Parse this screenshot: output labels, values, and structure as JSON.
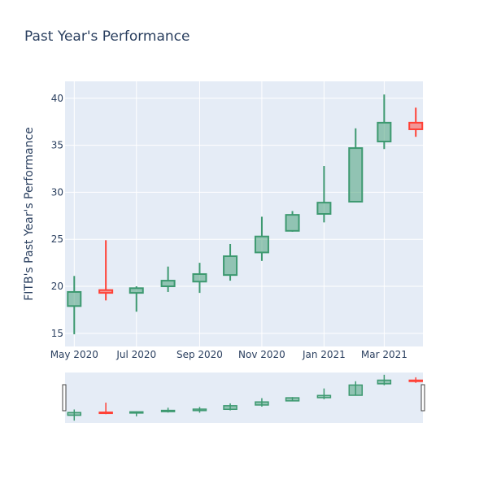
{
  "chart_data": {
    "type": "candlestick",
    "title": "Past Year's Performance",
    "ylabel": "FITB's Past Year's Performance",
    "xlabel": "",
    "ylim": [
      13.6,
      41.8
    ],
    "yticks": [
      15,
      20,
      25,
      30,
      35,
      40
    ],
    "xrange": [
      "2020-04-22",
      "2021-04-08"
    ],
    "xticks": [
      {
        "date": "2020-05-01",
        "label": "May 2020"
      },
      {
        "date": "2020-07-01",
        "label": "Jul 2020"
      },
      {
        "date": "2020-09-01",
        "label": "Sep 2020"
      },
      {
        "date": "2020-11-01",
        "label": "Nov 2020"
      },
      {
        "date": "2021-01-01",
        "label": "Jan 2021"
      },
      {
        "date": "2021-03-01",
        "label": "Mar 2021"
      }
    ],
    "increasing_color": "#3d9970",
    "decreasing_color": "#ff4136",
    "candles": [
      {
        "date": "2020-05-01",
        "open": 17.9,
        "high": 21.1,
        "low": 14.9,
        "close": 19.4
      },
      {
        "date": "2020-06-01",
        "open": 19.6,
        "high": 24.9,
        "low": 18.5,
        "close": 19.3
      },
      {
        "date": "2020-07-01",
        "open": 19.3,
        "high": 20.0,
        "low": 17.3,
        "close": 19.8
      },
      {
        "date": "2020-08-01",
        "open": 20.0,
        "high": 22.1,
        "low": 19.4,
        "close": 20.6
      },
      {
        "date": "2020-09-01",
        "open": 20.5,
        "high": 22.5,
        "low": 19.3,
        "close": 21.3
      },
      {
        "date": "2020-10-01",
        "open": 21.2,
        "high": 24.5,
        "low": 20.6,
        "close": 23.2
      },
      {
        "date": "2020-11-01",
        "open": 23.6,
        "high": 27.4,
        "low": 22.7,
        "close": 25.3
      },
      {
        "date": "2020-12-01",
        "open": 25.9,
        "high": 28.0,
        "low": 25.8,
        "close": 27.6
      },
      {
        "date": "2021-01-01",
        "open": 27.7,
        "high": 32.8,
        "low": 26.8,
        "close": 28.9
      },
      {
        "date": "2021-02-01",
        "open": 29.0,
        "high": 36.8,
        "low": 29.0,
        "close": 34.7
      },
      {
        "date": "2021-03-01",
        "open": 35.4,
        "high": 40.4,
        "low": 34.6,
        "close": 37.4
      },
      {
        "date": "2021-04-01",
        "open": 37.4,
        "high": 39.0,
        "low": 35.9,
        "close": 36.7
      }
    ],
    "grid": true,
    "rangeslider": true
  }
}
